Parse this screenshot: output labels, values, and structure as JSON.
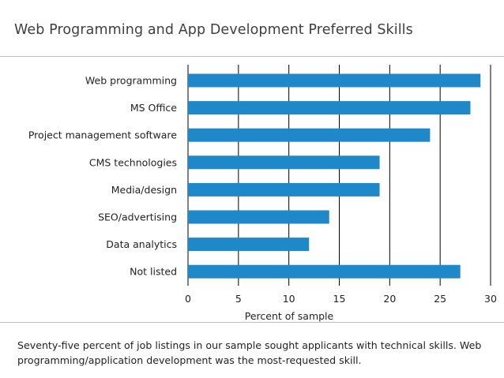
{
  "title": "Web Programming and App Development Preferred Skills",
  "caption": "Seventy-five percent of job listings in our sample sought applicants with technical skills. Web programming/application development was the most-requested skill.",
  "colors": {
    "bar": "#1f88c9",
    "grid": "#000000",
    "rule": "#bdbdbd"
  },
  "chart_data": {
    "type": "bar",
    "orientation": "horizontal",
    "categories": [
      "Web programming",
      "MS Office",
      "Project management software",
      "CMS technologies",
      "Media/design",
      "SEO/advertising",
      "Data analytics",
      "Not listed"
    ],
    "values": [
      29,
      28,
      24,
      19,
      19,
      14,
      12,
      27
    ],
    "xlabel": "Percent of sample",
    "ylabel": "",
    "xlim": [
      0,
      30
    ],
    "xticks": [
      0,
      5,
      10,
      15,
      20,
      25,
      30
    ],
    "grid": "vertical"
  }
}
